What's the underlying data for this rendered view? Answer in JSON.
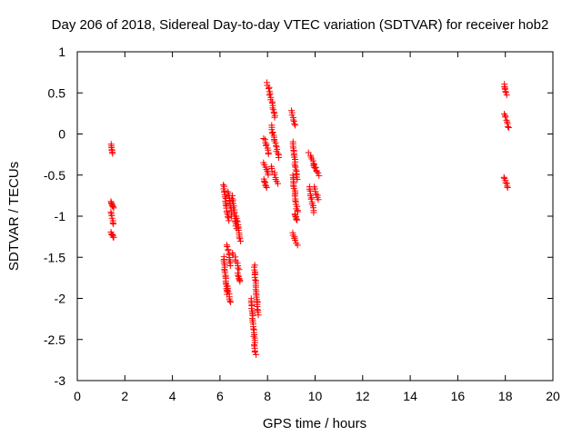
{
  "chart_data": {
    "type": "scatter",
    "title": "Day 206 of 2018, Sidereal Day-to-day VTEC variation (SDTVAR) for receiver hob2",
    "xlabel": "GPS time / hours",
    "ylabel": "SDTVAR / TECUs",
    "xlim": [
      0,
      20
    ],
    "ylim": [
      -3,
      1
    ],
    "xticks": [
      0,
      2,
      4,
      6,
      8,
      10,
      12,
      14,
      16,
      18,
      20
    ],
    "yticks": [
      1,
      0.5,
      0,
      -0.5,
      -1,
      -1.5,
      -2,
      -2.5,
      -3
    ],
    "ytick_labels": [
      "1",
      "0.5",
      "0",
      "-0.5",
      "-1",
      "-1.5",
      "-2",
      "-2.5",
      "-3"
    ],
    "grid": false,
    "marker": "+",
    "series": [
      {
        "name": "SDTVAR",
        "color": "#ff0000",
        "segments": [
          [
            1.42,
            1.48,
            -0.13,
            -0.24
          ],
          [
            1.42,
            1.52,
            -0.82,
            -0.9
          ],
          [
            1.42,
            1.52,
            -0.95,
            -1.1
          ],
          [
            1.42,
            1.52,
            -1.2,
            -1.26
          ],
          [
            6.15,
            6.35,
            -0.62,
            -1.05
          ],
          [
            6.35,
            6.5,
            -0.7,
            -1.0
          ],
          [
            6.5,
            6.7,
            -0.75,
            -1.15
          ],
          [
            6.7,
            6.85,
            -1.0,
            -1.3
          ],
          [
            6.15,
            6.3,
            -1.5,
            -1.95
          ],
          [
            6.3,
            6.45,
            -1.35,
            -1.6
          ],
          [
            6.3,
            6.45,
            -1.85,
            -2.05
          ],
          [
            6.55,
            6.8,
            -1.45,
            -1.65
          ],
          [
            6.75,
            6.85,
            -1.7,
            -1.8
          ],
          [
            7.3,
            7.5,
            -2.0,
            -2.68
          ],
          [
            7.45,
            7.6,
            -1.6,
            -2.2
          ],
          [
            7.85,
            8.05,
            -0.05,
            -0.25
          ],
          [
            7.85,
            8.05,
            -0.35,
            -0.5
          ],
          [
            7.85,
            7.95,
            -0.55,
            -0.65
          ],
          [
            8.0,
            8.3,
            0.62,
            0.2
          ],
          [
            8.15,
            8.45,
            0.1,
            -0.28
          ],
          [
            8.15,
            8.45,
            -0.4,
            -0.6
          ],
          [
            9.0,
            9.15,
            0.28,
            0.1
          ],
          [
            9.05,
            9.25,
            -0.1,
            -0.55
          ],
          [
            9.05,
            9.25,
            -0.5,
            -0.95
          ],
          [
            9.15,
            9.25,
            -0.98,
            -1.05
          ],
          [
            9.05,
            9.25,
            -1.2,
            -1.35
          ],
          [
            9.75,
            10.0,
            -0.23,
            -0.4
          ],
          [
            9.95,
            10.15,
            -0.38,
            -0.5
          ],
          [
            9.75,
            9.95,
            -0.65,
            -0.95
          ],
          [
            9.95,
            10.15,
            -0.65,
            -0.8
          ],
          [
            17.95,
            18.05,
            0.6,
            0.48
          ],
          [
            17.95,
            18.15,
            0.25,
            0.07
          ],
          [
            17.95,
            18.1,
            -0.52,
            -0.65
          ]
        ]
      }
    ]
  }
}
